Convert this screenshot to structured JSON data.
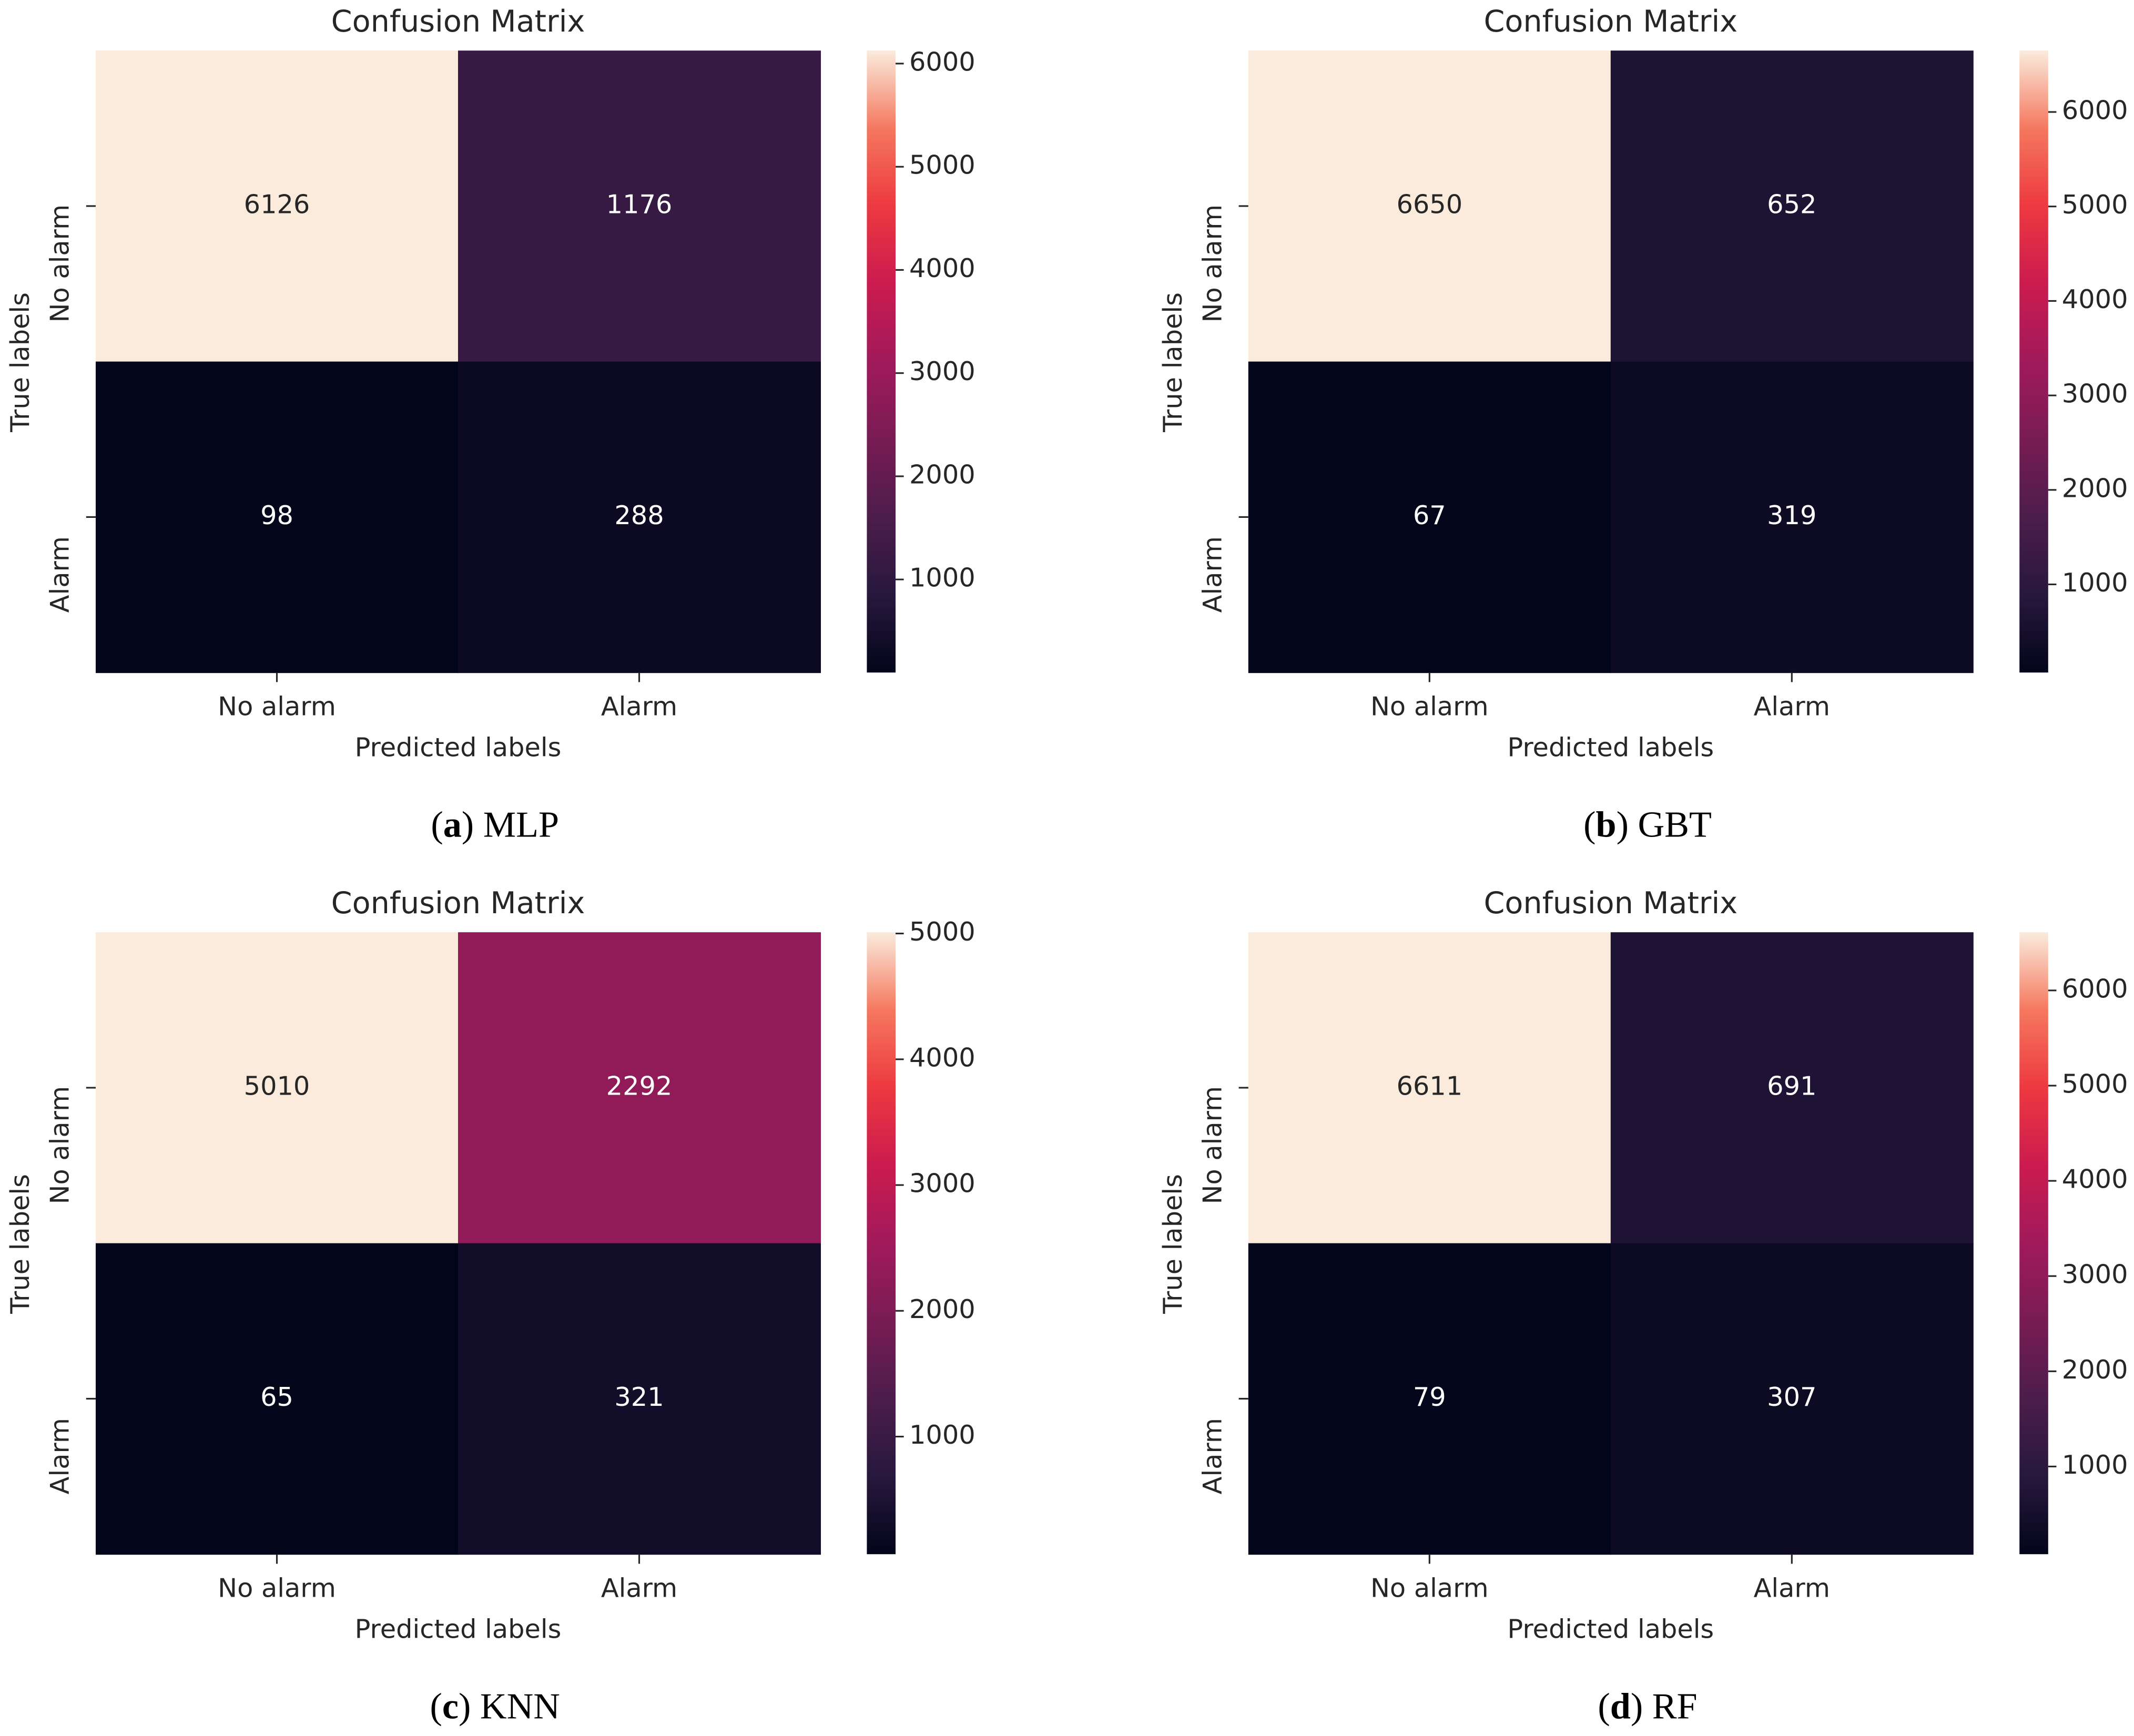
{
  "figure": {
    "panels": [
      {
        "caption_letter": "a",
        "caption_model": "MLP"
      },
      {
        "caption_letter": "b",
        "caption_model": "GBT"
      },
      {
        "caption_letter": "c",
        "caption_model": "KNN"
      },
      {
        "caption_letter": "d",
        "caption_model": "RF"
      }
    ]
  },
  "chart_data": [
    {
      "type": "heatmap",
      "title": "Confusion Matrix",
      "xlabel": "Predicted labels",
      "ylabel": "True labels",
      "x_categories": [
        "No alarm",
        "Alarm"
      ],
      "y_categories": [
        "No alarm",
        "Alarm"
      ],
      "values": [
        [
          6126,
          1176
        ],
        [
          98,
          288
        ]
      ],
      "colorbar": {
        "ticks": [
          1000,
          2000,
          3000,
          4000,
          5000,
          6000
        ],
        "range": [
          98,
          6126
        ],
        "colormap": "rocket"
      }
    },
    {
      "type": "heatmap",
      "title": "Confusion Matrix",
      "xlabel": "Predicted labels",
      "ylabel": "True labels",
      "x_categories": [
        "No alarm",
        "Alarm"
      ],
      "y_categories": [
        "No alarm",
        "Alarm"
      ],
      "values": [
        [
          6650,
          652
        ],
        [
          67,
          319
        ]
      ],
      "colorbar": {
        "ticks": [
          1000,
          2000,
          3000,
          4000,
          5000,
          6000
        ],
        "range": [
          67,
          6650
        ],
        "colormap": "rocket"
      }
    },
    {
      "type": "heatmap",
      "title": "Confusion Matrix",
      "xlabel": "Predicted labels",
      "ylabel": "True labels",
      "x_categories": [
        "No alarm",
        "Alarm"
      ],
      "y_categories": [
        "No alarm",
        "Alarm"
      ],
      "values": [
        [
          5010,
          2292
        ],
        [
          65,
          321
        ]
      ],
      "colorbar": {
        "ticks": [
          1000,
          2000,
          3000,
          4000,
          5000
        ],
        "range": [
          65,
          5010
        ],
        "colormap": "rocket"
      }
    },
    {
      "type": "heatmap",
      "title": "Confusion Matrix",
      "xlabel": "Predicted labels",
      "ylabel": "True labels",
      "x_categories": [
        "No alarm",
        "Alarm"
      ],
      "y_categories": [
        "No alarm",
        "Alarm"
      ],
      "values": [
        [
          6611,
          691
        ],
        [
          79,
          307
        ]
      ],
      "colorbar": {
        "ticks": [
          1000,
          2000,
          3000,
          4000,
          5000,
          6000
        ],
        "range": [
          79,
          6611
        ],
        "colormap": "rocket"
      }
    }
  ]
}
